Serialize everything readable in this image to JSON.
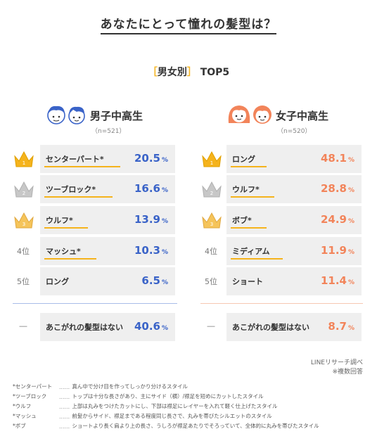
{
  "title": "あなたにとって憧れの髪型は？",
  "subtitle": {
    "open": "［",
    "text": "男女別",
    "close": "］",
    "suffix": "TOP5"
  },
  "colors": {
    "male_accent": "#3a63c8",
    "female_accent": "#f2845a",
    "gold": "#f5b31c",
    "gray_bg": "#efefef"
  },
  "groups": [
    {
      "title": "男子中高生",
      "n": "（n=521）",
      "icon": "boys-icon"
    },
    {
      "title": "女子中高生",
      "n": "（n=520）",
      "icon": "girls-icon"
    }
  ],
  "rank_labels": [
    "1",
    "2",
    "3",
    "4位",
    "5位"
  ],
  "none_rank_label": "―",
  "chart_data": [
    {
      "type": "table",
      "group": "男子中高生",
      "n": 521,
      "unit": "%",
      "rows": [
        {
          "rank": 1,
          "label": "センターパート*",
          "value": 20.5
        },
        {
          "rank": 2,
          "label": "ツーブロック*",
          "value": 16.6
        },
        {
          "rank": 3,
          "label": "ウルフ*",
          "value": 13.9
        },
        {
          "rank": 4,
          "label": "マッシュ*",
          "value": 10.3
        },
        {
          "rank": 5,
          "label": "ロング",
          "value": 6.5
        }
      ],
      "none": {
        "label": "あこがれの髪型はない",
        "value": 40.6
      }
    },
    {
      "type": "table",
      "group": "女子中高生",
      "n": 520,
      "unit": "%",
      "rows": [
        {
          "rank": 1,
          "label": "ロング",
          "value": 48.1
        },
        {
          "rank": 2,
          "label": "ウルフ*",
          "value": 28.8
        },
        {
          "rank": 3,
          "label": "ボブ*",
          "value": 24.9
        },
        {
          "rank": 4,
          "label": "ミディアム",
          "value": 11.9
        },
        {
          "rank": 5,
          "label": "ショート",
          "value": 11.4
        }
      ],
      "none": {
        "label": "あこがれの髪型はない",
        "value": 8.7
      }
    }
  ],
  "source": {
    "line1": "LINEリサーチ調べ",
    "line2": "※複数回答"
  },
  "notes": [
    {
      "term": "*センターパート",
      "dots": "………",
      "desc": "真ん中で分け目を作ってしっかり分けるスタイル"
    },
    {
      "term": "*ツーブロック",
      "dots": "…………",
      "desc": "トップは十分な長さがあり、主にサイド（横）/襟足を短めにカットしたスタイル"
    },
    {
      "term": "*ウルフ",
      "dots": "………………",
      "desc": "上部は丸みをつけたカットにし、下部は襟足にレイヤーを入れて軽く仕上げたスタイル"
    },
    {
      "term": "*マッシュ",
      "dots": "………………",
      "desc": "前髪からサイド、襟足まである程度同じ長さで、丸みを帯びたシルエットのスタイル"
    },
    {
      "term": "*ボブ",
      "dots": "…………………",
      "desc": "ショートより長く肩より上の長さ、うしろが襟足あたりでそろっていて、全体的に丸みを帯びたスタイル"
    }
  ]
}
